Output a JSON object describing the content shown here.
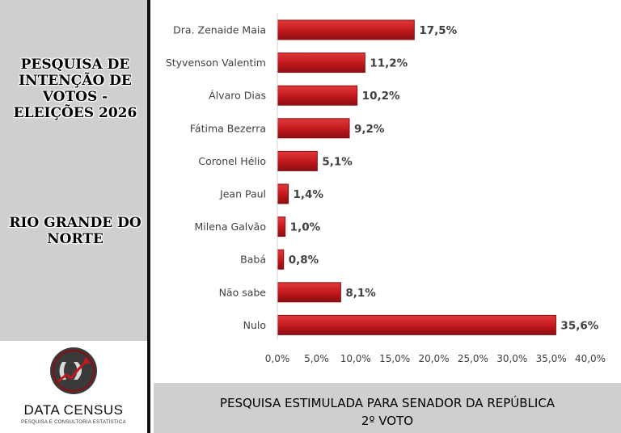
{
  "sidebar": {
    "title": "PESQUISA DE INTENÇÃO DE VOTOS - ELEIÇÕES 2026",
    "region": "RIO GRANDE DO NORTE"
  },
  "logo": {
    "name": "DATA CENSUS",
    "tagline": "PESQUISA E CONSULTORIA ESTATÍSTICA"
  },
  "footer": {
    "line1": "PESQUISA ESTIMULADA PARA SENADOR DA REPÚBLICA",
    "line2": "2º VOTO"
  },
  "colors": {
    "bar": "#c0181c",
    "bar_dark": "#8a0e12",
    "label_text": "#404040",
    "sidebar_bg": "#cfcfcf"
  },
  "chart_data": {
    "type": "bar",
    "orientation": "horizontal",
    "categories": [
      "Dra. Zenaide Maia",
      "Styvenson Valentim",
      "Álvaro Dias",
      "Fátima Bezerra",
      "Coronel Hélio",
      "Jean Paul",
      "Milena Galvão",
      "Babá",
      "Não sabe",
      "Nulo"
    ],
    "values": [
      17.5,
      11.2,
      10.2,
      9.2,
      5.1,
      1.4,
      1.0,
      0.8,
      8.1,
      35.6
    ],
    "value_labels": [
      "17,5%",
      "11,2%",
      "10,2%",
      "9,2%",
      "5,1%",
      "1,4%",
      "1,0%",
      "0,8%",
      "8,1%",
      "35,6%"
    ],
    "xlim": [
      0,
      40
    ],
    "x_ticks": [
      0,
      5,
      10,
      15,
      20,
      25,
      30,
      35,
      40
    ],
    "x_tick_labels": [
      "0,0%",
      "5,0%",
      "10,0%",
      "15,0%",
      "20,0%",
      "25,0%",
      "30,0%",
      "35,0%",
      "40,0%"
    ],
    "grid": false,
    "legend": "none"
  }
}
